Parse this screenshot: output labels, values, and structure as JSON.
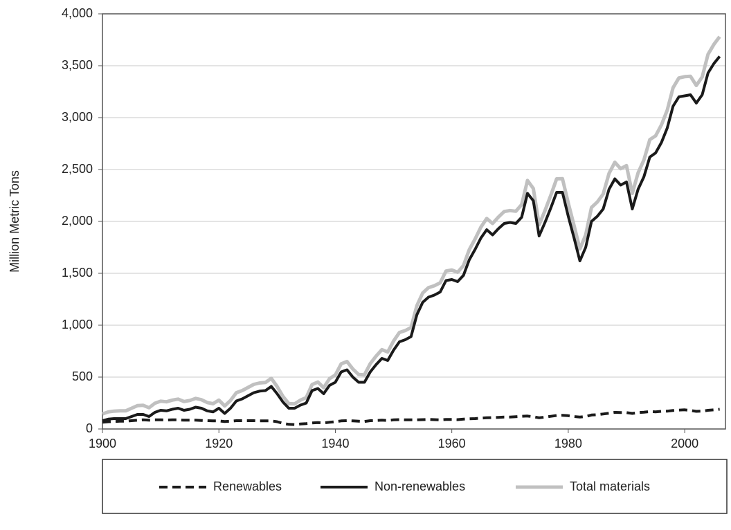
{
  "chart_data": {
    "type": "line",
    "y_label": "Million Metric Tons",
    "x": [
      1900,
      1901,
      1902,
      1903,
      1904,
      1905,
      1906,
      1907,
      1908,
      1909,
      1910,
      1911,
      1912,
      1913,
      1914,
      1915,
      1916,
      1917,
      1918,
      1919,
      1920,
      1921,
      1922,
      1923,
      1924,
      1925,
      1926,
      1927,
      1928,
      1929,
      1930,
      1931,
      1932,
      1933,
      1934,
      1935,
      1936,
      1937,
      1938,
      1939,
      1940,
      1941,
      1942,
      1943,
      1944,
      1945,
      1946,
      1947,
      1948,
      1949,
      1950,
      1951,
      1952,
      1953,
      1954,
      1955,
      1956,
      1957,
      1958,
      1959,
      1960,
      1961,
      1962,
      1963,
      1964,
      1965,
      1966,
      1967,
      1968,
      1969,
      1970,
      1971,
      1972,
      1973,
      1974,
      1975,
      1976,
      1977,
      1978,
      1979,
      1980,
      1981,
      1982,
      1983,
      1984,
      1985,
      1986,
      1987,
      1988,
      1989,
      1990,
      1991,
      1992,
      1993,
      1994,
      1995,
      1996,
      1997,
      1998,
      1999,
      2000,
      2001,
      2002,
      2003,
      2004,
      2005,
      2006
    ],
    "series": [
      {
        "name": "Renewables",
        "color": "#1a1a1a",
        "dashed": true,
        "values": [
          65,
          70,
          72,
          75,
          75,
          80,
          85,
          88,
          85,
          88,
          88,
          87,
          88,
          88,
          85,
          85,
          85,
          82,
          80,
          78,
          78,
          72,
          75,
          80,
          80,
          80,
          80,
          78,
          78,
          78,
          70,
          55,
          45,
          42,
          48,
          52,
          58,
          62,
          58,
          65,
          70,
          78,
          80,
          78,
          75,
          72,
          80,
          82,
          85,
          82,
          88,
          90,
          88,
          88,
          88,
          90,
          92,
          90,
          88,
          92,
          92,
          90,
          95,
          98,
          100,
          105,
          108,
          110,
          112,
          115,
          115,
          118,
          122,
          125,
          118,
          108,
          115,
          122,
          130,
          132,
          128,
          120,
          115,
          120,
          135,
          138,
          145,
          152,
          160,
          158,
          158,
          150,
          158,
          162,
          168,
          165,
          170,
          172,
          178,
          182,
          185,
          178,
          170,
          172,
          180,
          185,
          190
        ]
      },
      {
        "name": "Non-renewables",
        "color": "#1a1a1a",
        "dashed": false,
        "values": [
          80,
          95,
          100,
          100,
          100,
          120,
          140,
          140,
          120,
          160,
          180,
          175,
          190,
          200,
          180,
          190,
          210,
          200,
          175,
          165,
          200,
          150,
          200,
          270,
          290,
          320,
          350,
          365,
          370,
          410,
          340,
          260,
          200,
          200,
          230,
          250,
          370,
          390,
          340,
          420,
          450,
          550,
          570,
          500,
          450,
          450,
          550,
          620,
          680,
          660,
          760,
          840,
          860,
          890,
          1100,
          1220,
          1270,
          1290,
          1320,
          1430,
          1440,
          1420,
          1480,
          1630,
          1730,
          1840,
          1920,
          1870,
          1930,
          1980,
          1990,
          1980,
          2040,
          2270,
          2200,
          1860,
          1990,
          2130,
          2280,
          2280,
          2050,
          1840,
          1620,
          1750,
          2000,
          2050,
          2120,
          2310,
          2410,
          2350,
          2380,
          2120,
          2310,
          2430,
          2620,
          2660,
          2760,
          2900,
          3110,
          3200,
          3210,
          3220,
          3140,
          3220,
          3430,
          3520,
          3590
        ]
      },
      {
        "name": "Total materials",
        "color": "#c0c0c0",
        "dashed": false,
        "values": [
          145,
          165,
          172,
          175,
          175,
          200,
          225,
          228,
          205,
          248,
          268,
          262,
          278,
          288,
          265,
          275,
          295,
          282,
          255,
          243,
          278,
          222,
          275,
          350,
          370,
          400,
          430,
          443,
          448,
          488,
          410,
          315,
          245,
          242,
          278,
          302,
          428,
          452,
          398,
          485,
          520,
          628,
          650,
          578,
          525,
          522,
          630,
          702,
          765,
          742,
          848,
          930,
          948,
          978,
          1188,
          1310,
          1362,
          1380,
          1408,
          1522,
          1532,
          1510,
          1575,
          1728,
          1830,
          1945,
          2028,
          1980,
          2042,
          2095,
          2105,
          2098,
          2162,
          2395,
          2318,
          1968,
          2105,
          2252,
          2410,
          2412,
          2178,
          1960,
          1735,
          1870,
          2135,
          2188,
          2265,
          2462,
          2570,
          2508,
          2538,
          2270,
          2468,
          2592,
          2788,
          2825,
          2930,
          3072,
          3288,
          3382,
          3395,
          3398,
          3310,
          3392,
          3610,
          3705,
          3780
        ]
      }
    ],
    "xlim": [
      1900,
      2007
    ],
    "xticks": [
      1900,
      1920,
      1940,
      1960,
      1980,
      2000
    ],
    "ylim": [
      0,
      4000
    ],
    "yticks": [
      0,
      500,
      {
        "value": 1000,
        "label": "1,000"
      },
      {
        "value": 1500,
        "label": "1,500"
      },
      {
        "value": 2000,
        "label": "2,000"
      },
      {
        "value": 2500,
        "label": "2,500"
      },
      {
        "value": 3000,
        "label": "3,000"
      },
      {
        "value": 3500,
        "label": "3,500"
      },
      {
        "value": 4000,
        "label": "4,000"
      }
    ],
    "grid": true,
    "legend": "bottom"
  }
}
